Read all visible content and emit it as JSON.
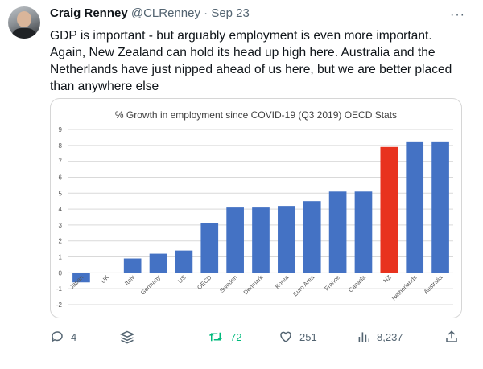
{
  "tweet": {
    "author_name": "Craig Renney",
    "handle": "@CLRenney",
    "separator": "·",
    "date": "Sep 23",
    "text": "GDP is important - but arguably employment is even more important. Again, New Zealand can hold its head up high here. Australia and the Netherlands have just nipped ahead of us here, but we are better placed than anywhere else"
  },
  "actions": {
    "replies": "4",
    "retweets": "72",
    "likes": "251",
    "views": "8,237"
  },
  "icons": {
    "reply": "reply-icon",
    "stack": "stack-icon",
    "retweet": "retweet-icon",
    "like": "heart-icon",
    "views": "views-icon",
    "share": "share-icon",
    "more": "more-icon"
  },
  "chart_data": {
    "type": "bar",
    "title": "% Growth in employment since COVID-19 (Q3 2019) OECD Stats",
    "categories": [
      "Japan",
      "UK",
      "Italy",
      "Germany",
      "US",
      "OECD",
      "Sweden",
      "Denmark",
      "Korea",
      "Euro Area",
      "France",
      "Canada",
      "NZ",
      "Netherlands",
      "Australia"
    ],
    "values": [
      -0.6,
      0.0,
      0.9,
      1.2,
      1.4,
      3.1,
      4.1,
      4.1,
      4.2,
      4.5,
      5.1,
      5.1,
      7.9,
      8.2,
      8.2
    ],
    "ylim": [
      -2,
      9
    ],
    "yticks": [
      "-2",
      "-1",
      "0",
      "1",
      "2",
      "3",
      "4",
      "5",
      "6",
      "7",
      "8",
      "9"
    ],
    "xlabel": "",
    "ylabel": "",
    "grid": true,
    "colors": {
      "default": "#4472c4",
      "highlight": "#e8321e",
      "highlight_category": "NZ",
      "grid": "#d9d9d9"
    }
  }
}
